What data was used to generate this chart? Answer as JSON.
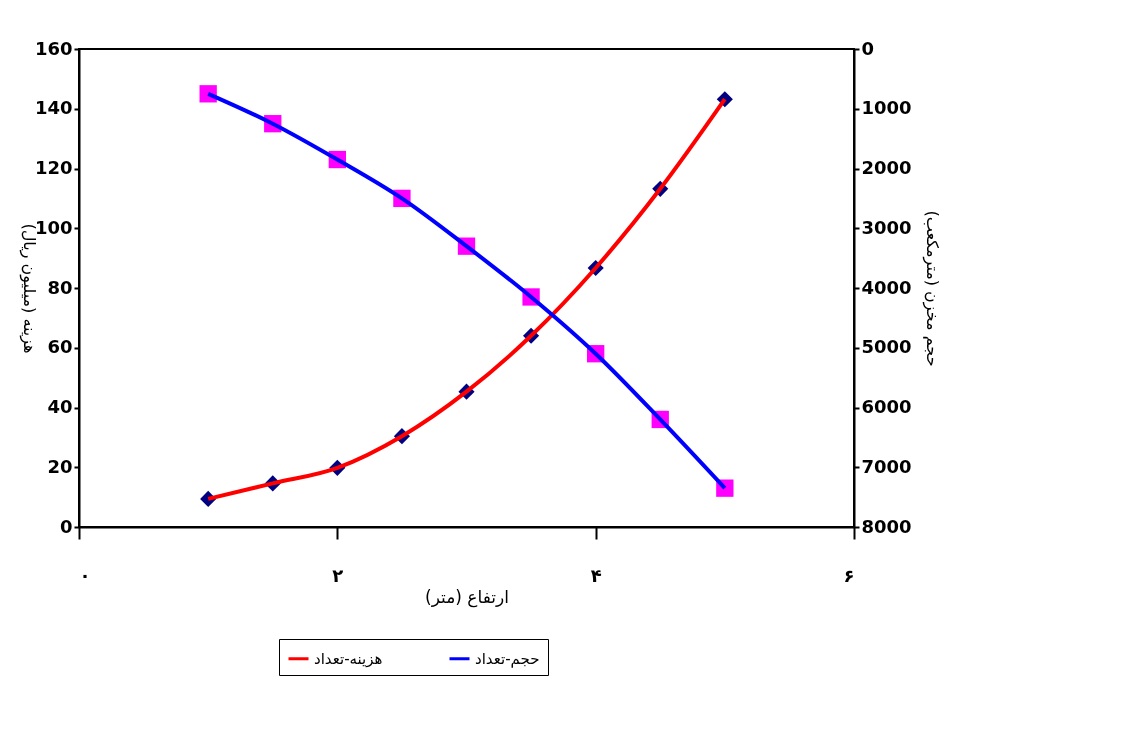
{
  "chart_data": {
    "type": "line",
    "xlabel": "ارتفاع (متر)",
    "ylabel": "هزینه (میلیون ریال)",
    "y2label": "حجم مخزن (مترمکعب)",
    "x": [
      1,
      1.5,
      2,
      2.5,
      3,
      3.5,
      4,
      4.5,
      5
    ],
    "xlim": [
      0,
      6
    ],
    "xticks": [
      {
        "value": 0,
        "label": "۰"
      },
      {
        "value": 2,
        "label": "۲"
      },
      {
        "value": 4,
        "label": "۴"
      },
      {
        "value": 6,
        "label": "۶"
      }
    ],
    "ylim": [
      0,
      160
    ],
    "yticks": [
      0,
      20,
      40,
      60,
      80,
      100,
      120,
      140,
      160
    ],
    "y2lim": [
      8000,
      0
    ],
    "y2ticks": [
      0,
      1000,
      2000,
      3000,
      4000,
      5000,
      6000,
      7000,
      8000
    ],
    "series": [
      {
        "name": "هزینه-تعداد",
        "color": "#ff0000",
        "marker": "diamond",
        "colors": [
          "#000080",
          "#000080",
          "#000080",
          "#000080",
          "#000080",
          "#000080",
          "#000080",
          "#000080",
          "#000080"
        ],
        "values": [
          9.4,
          14.6,
          19.8,
          30.4,
          45.3,
          64,
          86.7,
          113.2,
          143.2
        ]
      },
      {
        "name": "حجم-تعداد",
        "color": "#0000ff",
        "marker": "square",
        "axis": "y2",
        "colors": [
          "#ff00ff",
          "#ff00ff",
          "#ff00ff",
          "#ff00ff",
          "#ff00ff",
          "#ff00ff",
          "#ff00ff",
          "#ff00ff",
          "#ff00ff"
        ],
        "values": [
          750,
          1250,
          1850,
          2500,
          3300,
          4150,
          5100,
          6200,
          7350
        ]
      }
    ],
    "grid": false,
    "legend": "bottom",
    "line_style": "solid"
  }
}
